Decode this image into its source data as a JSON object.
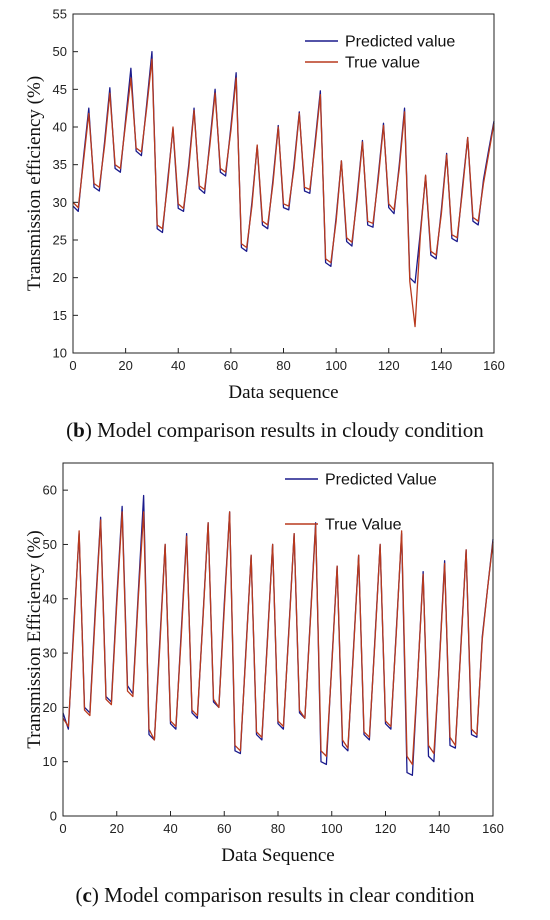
{
  "chart_data": [
    {
      "type": "line",
      "panel": "b",
      "caption_letter": "b",
      "caption_text": ") Model comparison results in cloudy condition",
      "xlabel": "Data sequence",
      "ylabel": "Transmission efficiency (%)",
      "xlim": [
        0,
        160
      ],
      "ylim": [
        10,
        55
      ],
      "xticks": [
        0,
        20,
        40,
        60,
        80,
        100,
        120,
        140,
        160
      ],
      "yticks": [
        10,
        15,
        20,
        25,
        30,
        35,
        40,
        45,
        50,
        55
      ],
      "legend_position": "top-right",
      "series": [
        {
          "name": "Predicted value",
          "color": "#1a1a8c",
          "x": [
            0,
            2,
            4,
            6,
            8,
            10,
            12,
            14,
            16,
            18,
            20,
            22,
            24,
            26,
            28,
            30,
            32,
            34,
            36,
            38,
            40,
            42,
            44,
            46,
            48,
            50,
            52,
            54,
            56,
            58,
            60,
            62,
            64,
            66,
            68,
            70,
            72,
            74,
            76,
            78,
            80,
            82,
            84,
            86,
            88,
            90,
            92,
            94,
            96,
            98,
            100,
            102,
            104,
            106,
            108,
            110,
            112,
            114,
            116,
            118,
            120,
            122,
            124,
            126,
            128,
            130,
            132,
            134,
            136,
            138,
            140,
            142,
            144,
            146,
            148,
            150,
            152,
            154,
            156,
            158,
            160
          ],
          "y": [
            29.5,
            28.8,
            36,
            42.5,
            32,
            31.5,
            38,
            45.2,
            34.5,
            34,
            41,
            47.8,
            36.8,
            36.2,
            43,
            50,
            26.5,
            26,
            33,
            39.8,
            29.2,
            28.8,
            35,
            42.5,
            31.8,
            31.2,
            38,
            45,
            34,
            33.5,
            40,
            47.2,
            24,
            23.5,
            30,
            37.5,
            27,
            26.5,
            33,
            40.2,
            29.3,
            29,
            35,
            42,
            31.5,
            31.2,
            38,
            44.8,
            22,
            21.5,
            28,
            35.5,
            24.8,
            24.2,
            31,
            38.2,
            27,
            26.7,
            33.5,
            40.5,
            29.3,
            28.5,
            35,
            42.5,
            20,
            19.3,
            26,
            33.5,
            23,
            22.5,
            29,
            36.5,
            25.2,
            24.8,
            32,
            38.6,
            27.5,
            27,
            33,
            37,
            40.8
          ]
        },
        {
          "name": "True value",
          "color": "#b83a1e",
          "x": [
            0,
            2,
            4,
            6,
            8,
            10,
            12,
            14,
            16,
            18,
            20,
            22,
            24,
            26,
            28,
            30,
            32,
            34,
            36,
            38,
            40,
            42,
            44,
            46,
            48,
            50,
            52,
            54,
            56,
            58,
            60,
            62,
            64,
            66,
            68,
            70,
            72,
            74,
            76,
            78,
            80,
            82,
            84,
            86,
            88,
            90,
            92,
            94,
            96,
            98,
            100,
            102,
            104,
            106,
            108,
            110,
            112,
            114,
            116,
            118,
            120,
            122,
            124,
            126,
            128,
            130,
            132,
            134,
            136,
            138,
            140,
            142,
            144,
            146,
            148,
            150,
            152,
            154,
            156,
            158,
            160
          ],
          "y": [
            30,
            29.3,
            35.5,
            41.8,
            32.5,
            32,
            37.5,
            44.5,
            35,
            34.5,
            40.5,
            46.5,
            37.2,
            36.7,
            42.5,
            49,
            27,
            26.5,
            32.5,
            40,
            29.8,
            29.2,
            34.5,
            42.2,
            32.2,
            31.7,
            37.5,
            44.5,
            34.5,
            34,
            39.5,
            46.5,
            24.5,
            24,
            29.5,
            37.6,
            27.5,
            27,
            32.5,
            40,
            29.8,
            29.5,
            34.5,
            41.8,
            32,
            31.7,
            37.5,
            44.3,
            22.5,
            22,
            27.5,
            35.5,
            25.3,
            24.7,
            30.5,
            38,
            27.5,
            27.2,
            33,
            40.2,
            29.8,
            29,
            34.5,
            42,
            19.5,
            13.5,
            25.5,
            33.6,
            23.5,
            23,
            28.5,
            36.3,
            25.7,
            25.3,
            31.5,
            38.6,
            28,
            27.5,
            32.5,
            36.5,
            40.5
          ]
        }
      ]
    },
    {
      "type": "line",
      "panel": "c",
      "caption_letter": "c",
      "caption_text": ") Model comparison results in clear condition",
      "xlabel": "Data Sequence",
      "ylabel": "Transmission Efficiency (%)",
      "xlim": [
        0,
        160
      ],
      "ylim": [
        0,
        65
      ],
      "xticks": [
        0,
        20,
        40,
        60,
        80,
        100,
        120,
        140,
        160
      ],
      "yticks": [
        0,
        10,
        20,
        30,
        40,
        50,
        60
      ],
      "legend_position": "top-right",
      "series": [
        {
          "name": "Predicted Value",
          "color": "#1a1a8c",
          "x": [
            0,
            2,
            4,
            6,
            8,
            10,
            12,
            14,
            16,
            18,
            20,
            22,
            24,
            26,
            28,
            30,
            32,
            34,
            36,
            38,
            40,
            42,
            44,
            46,
            48,
            50,
            52,
            54,
            56,
            58,
            60,
            62,
            64,
            66,
            68,
            70,
            72,
            74,
            76,
            78,
            80,
            82,
            84,
            86,
            88,
            90,
            92,
            94,
            96,
            98,
            100,
            102,
            104,
            106,
            108,
            110,
            112,
            114,
            116,
            118,
            120,
            122,
            124,
            126,
            128,
            130,
            132,
            134,
            136,
            138,
            140,
            142,
            144,
            146,
            148,
            150,
            152,
            154,
            156,
            158,
            160
          ],
          "y": [
            19,
            16,
            35,
            52,
            20,
            19,
            38,
            55,
            22,
            21,
            40,
            57,
            24,
            22.5,
            41,
            59,
            15,
            14,
            32,
            50,
            17,
            16,
            34,
            52,
            19,
            18,
            36,
            54,
            21,
            20,
            39,
            56,
            12,
            11.5,
            30,
            48,
            15,
            14,
            32,
            50,
            17,
            16,
            34,
            52,
            19,
            18,
            36,
            54,
            10,
            9.5,
            28,
            46,
            13,
            12,
            30,
            48,
            15,
            14,
            32,
            50,
            17,
            16,
            34,
            52,
            8,
            7.5,
            26,
            45,
            11,
            10,
            28,
            47,
            13,
            12.5,
            31,
            49,
            15,
            14.5,
            33,
            42,
            51
          ]
        },
        {
          "name": "True Value",
          "color": "#b83a1e",
          "x": [
            0,
            2,
            4,
            6,
            8,
            10,
            12,
            14,
            16,
            18,
            20,
            22,
            24,
            26,
            28,
            30,
            32,
            34,
            36,
            38,
            40,
            42,
            44,
            46,
            48,
            50,
            52,
            54,
            56,
            58,
            60,
            62,
            64,
            66,
            68,
            70,
            72,
            74,
            76,
            78,
            80,
            82,
            84,
            86,
            88,
            90,
            92,
            94,
            96,
            98,
            100,
            102,
            104,
            106,
            108,
            110,
            112,
            114,
            116,
            118,
            120,
            122,
            124,
            126,
            128,
            130,
            132,
            134,
            136,
            138,
            140,
            142,
            144,
            146,
            148,
            150,
            152,
            154,
            156,
            158,
            160
          ],
          "y": [
            18,
            16.5,
            34,
            52.5,
            19.5,
            18.5,
            37,
            54.5,
            21.5,
            20.5,
            39,
            56,
            23,
            22,
            40,
            56,
            16,
            14,
            31,
            50,
            17.5,
            16.5,
            33,
            51.5,
            19.5,
            18.5,
            35.5,
            54,
            21.5,
            20,
            38,
            56,
            13,
            12,
            29.5,
            48,
            15.5,
            14.5,
            31.5,
            50,
            17.5,
            16.5,
            33.5,
            52,
            19.5,
            18,
            35.5,
            53.5,
            12,
            11,
            27.5,
            46,
            14,
            12.5,
            29.5,
            48,
            15.5,
            14.5,
            31.5,
            50,
            17.5,
            16.5,
            33.5,
            52.5,
            11,
            9.5,
            26,
            44.5,
            13,
            11.5,
            27.5,
            46.5,
            14.5,
            13,
            30.5,
            49,
            16,
            15,
            32.5,
            42,
            50.5
          ]
        }
      ]
    }
  ]
}
